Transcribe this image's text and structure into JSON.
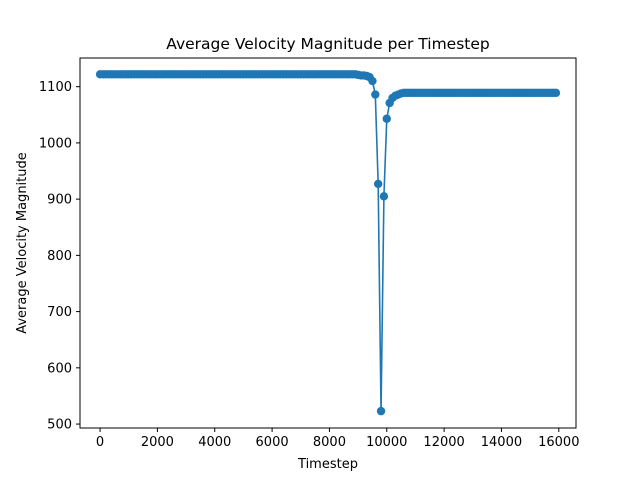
{
  "chart_data": {
    "type": "line",
    "title": "Average Velocity Magnitude per Timestep",
    "xlabel": "Timestep",
    "ylabel": "Average Velocity Magnitude",
    "xlim": [
      -700,
      16600
    ],
    "ylim": [
      493,
      1151
    ],
    "xticks": [
      0,
      2000,
      4000,
      6000,
      8000,
      10000,
      12000,
      14000,
      16000
    ],
    "yticks": [
      500,
      600,
      700,
      800,
      900,
      1000,
      1100
    ],
    "grid": false,
    "legend": "none",
    "series_color": "#1f77b4",
    "marker": "circle",
    "series": [
      {
        "x": [
          0,
          100,
          200,
          300,
          400,
          500,
          600,
          700,
          800,
          900,
          1000,
          1100,
          1200,
          1300,
          1400,
          1500,
          1600,
          1700,
          1800,
          1900,
          2000,
          2100,
          2200,
          2300,
          2400,
          2500,
          2600,
          2700,
          2800,
          2900,
          3000,
          3100,
          3200,
          3300,
          3400,
          3500,
          3600,
          3700,
          3800,
          3900,
          4000,
          4100,
          4200,
          4300,
          4400,
          4500,
          4600,
          4700,
          4800,
          4900,
          5000,
          5100,
          5200,
          5300,
          5400,
          5500,
          5600,
          5700,
          5800,
          5900,
          6000,
          6100,
          6200,
          6300,
          6400,
          6500,
          6600,
          6700,
          6800,
          6900,
          7000,
          7100,
          7200,
          7300,
          7400,
          7500,
          7600,
          7700,
          7800,
          7900,
          8000,
          8100,
          8200,
          8300,
          8400,
          8500,
          8600,
          8700,
          8800,
          8900,
          9000,
          9100,
          9200,
          9300,
          9400,
          9500,
          9600,
          9700,
          9800,
          9900,
          10000,
          10100,
          10200,
          10300,
          10400,
          10500,
          10600,
          10700,
          10800,
          10900,
          11000,
          11100,
          11200,
          11300,
          11400,
          11500,
          11600,
          11700,
          11800,
          11900,
          12000,
          12100,
          12200,
          12300,
          12400,
          12500,
          12600,
          12700,
          12800,
          12900,
          13000,
          13100,
          13200,
          13300,
          13400,
          13500,
          13600,
          13700,
          13800,
          13900,
          14000,
          14100,
          14200,
          14300,
          14400,
          14500,
          14600,
          14700,
          14800,
          14900,
          15000,
          15100,
          15200,
          15300,
          15400,
          15500,
          15600,
          15700,
          15800,
          15900
        ],
        "y": [
          1122,
          1122,
          1122,
          1122,
          1122,
          1122,
          1122,
          1122,
          1122,
          1122,
          1122,
          1122,
          1122,
          1122,
          1122,
          1122,
          1122,
          1122,
          1122,
          1122,
          1122,
          1122,
          1122,
          1122,
          1122,
          1122,
          1122,
          1122,
          1122,
          1122,
          1122,
          1122,
          1122,
          1122,
          1122,
          1122,
          1122,
          1122,
          1122,
          1122,
          1122,
          1122,
          1122,
          1122,
          1122,
          1122,
          1122,
          1122,
          1122,
          1122,
          1122,
          1122,
          1122,
          1122,
          1122,
          1122,
          1122,
          1122,
          1122,
          1122,
          1122,
          1122,
          1122,
          1122,
          1122,
          1122,
          1122,
          1122,
          1122,
          1122,
          1122,
          1122,
          1122,
          1122,
          1122,
          1122,
          1122,
          1122,
          1122,
          1122,
          1122,
          1122,
          1122,
          1122,
          1122,
          1122,
          1122,
          1122,
          1122,
          1122,
          1121,
          1120,
          1120,
          1119,
          1117,
          1110,
          1086,
          927,
          523,
          905,
          1043,
          1071,
          1080,
          1084,
          1086,
          1088,
          1089,
          1089,
          1089,
          1089,
          1089,
          1089,
          1089,
          1089,
          1089,
          1089,
          1089,
          1089,
          1089,
          1089,
          1089,
          1089,
          1089,
          1089,
          1089,
          1089,
          1089,
          1089,
          1089,
          1089,
          1089,
          1089,
          1089,
          1089,
          1089,
          1089,
          1089,
          1089,
          1089,
          1089,
          1089,
          1089,
          1089,
          1089,
          1089,
          1089,
          1089,
          1089,
          1089,
          1089,
          1089,
          1089,
          1089,
          1089,
          1089,
          1089,
          1089,
          1089,
          1089,
          1089
        ]
      }
    ]
  }
}
